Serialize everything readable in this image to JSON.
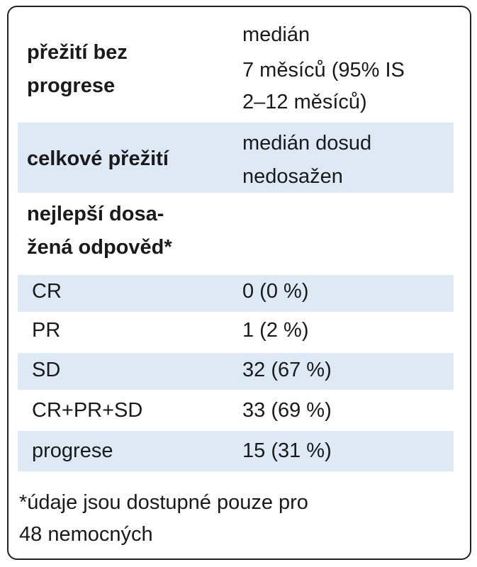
{
  "table": {
    "rows": [
      {
        "label": [
          "přežití bez",
          "progrese"
        ],
        "value": [
          "medián",
          "7 měsíců (95% IS",
          "2–12 měsíců)"
        ]
      },
      {
        "label": [
          "celkové přežití"
        ],
        "value": [
          "medián dosud",
          "nedosažen"
        ]
      },
      {
        "label": [
          "nejlepší dosa-",
          "žená odpověd*"
        ]
      },
      {
        "label": [
          "CR"
        ],
        "value": [
          "0 (0 %)"
        ]
      },
      {
        "label": [
          "PR"
        ],
        "value": [
          "1 (2 %)"
        ]
      },
      {
        "label": [
          "SD"
        ],
        "value": [
          "32 (67 %)"
        ]
      },
      {
        "label": [
          "CR+PR+SD"
        ],
        "value": [
          "33 (69 %)"
        ]
      },
      {
        "label": [
          "progrese"
        ],
        "value": [
          "15 (31 %)"
        ]
      }
    ]
  },
  "footnote": [
    "*údaje jsou dostupné pouze pro",
    "48 nemocných"
  ]
}
